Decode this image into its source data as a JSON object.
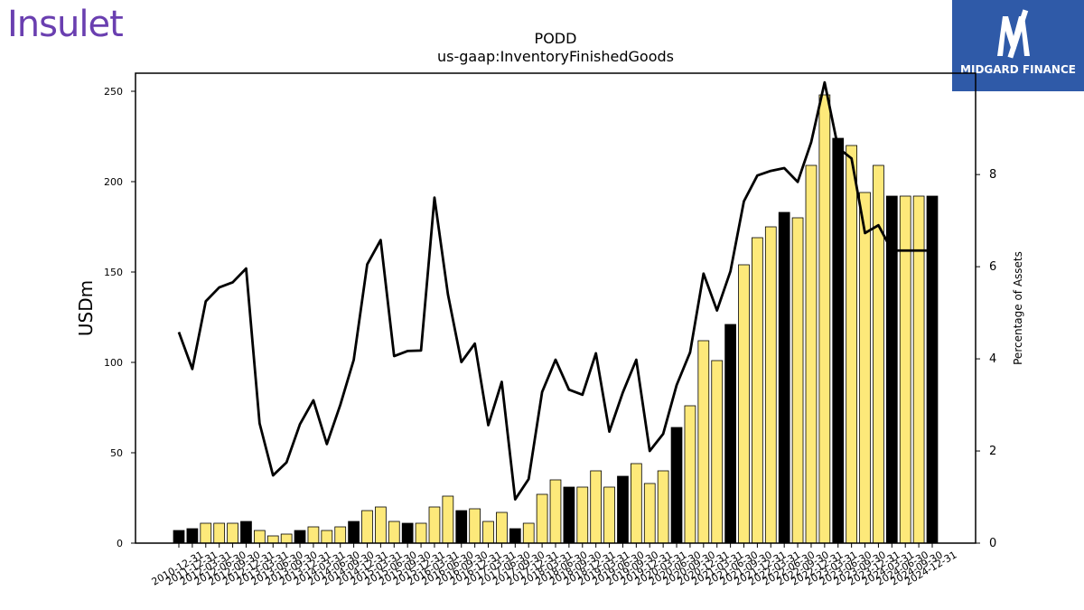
{
  "branding": {
    "left_logo_text": "Insulet",
    "right_logo_text": "MIDGARD FINANCE",
    "right_logo_icon": "midgard-m-icon",
    "right_logo_bg": "#2f5aa8",
    "left_logo_color": "#6a3fb0"
  },
  "chart_data": {
    "type": "bar",
    "title": "PODD",
    "subtitle": "us-gaap:InventoryFinishedGoods",
    "ylabel": "USDm",
    "y2label": "Percentage of Assets",
    "ylim": [
      0,
      260
    ],
    "y2lim": [
      0,
      10.2
    ],
    "yticks": [
      0,
      50,
      100,
      150,
      200,
      250
    ],
    "y2ticks": [
      0,
      2,
      4,
      6,
      8
    ],
    "grid": false,
    "colors": {
      "annual_bar": "#000000",
      "quarter_bar": "#fde97a",
      "line": "#000000"
    },
    "categories": [
      "2010-12-31",
      "2011-03-31",
      "2011-06-30",
      "2011-09-30",
      "2011-12-31",
      "2012-03-31",
      "2012-06-30",
      "2012-09-30",
      "2012-12-31",
      "2013-03-31",
      "2013-06-30",
      "2013-09-30",
      "2013-12-31",
      "2014-03-31",
      "2014-06-30",
      "2014-09-30",
      "2014-12-31",
      "2015-03-31",
      "2015-06-30",
      "2015-09-30",
      "2015-12-31",
      "2016-03-31",
      "2016-06-30",
      "2016-09-30",
      "2016-12-31",
      "2017-03-31",
      "2017-06-30",
      "2017-09-30",
      "2017-12-31",
      "2018-03-31",
      "2018-06-30",
      "2018-09-30",
      "2018-12-31",
      "2019-03-31",
      "2019-06-30",
      "2019-09-30",
      "2019-12-31",
      "2020-03-31",
      "2020-06-30",
      "2020-09-30",
      "2020-12-31",
      "2021-03-31",
      "2021-06-30",
      "2021-09-30",
      "2021-12-31",
      "2022-03-31",
      "2022-06-30",
      "2022-09-30",
      "2022-12-31",
      "2023-03-31",
      "2023-06-30",
      "2023-09-30",
      "2023-12-31",
      "2024-03-31",
      "2024-06-30",
      "2024-09-30",
      "2024-12-31"
    ],
    "xtick_labels": [
      "2010-12-31",
      "2011-12-31",
      "2012-03-31",
      "2012-06-30",
      "2012-09-30",
      "2012-12-31",
      "2013-03-31",
      "2013-06-30",
      "2013-09-30",
      "2013-12-31",
      "2014-03-31",
      "2014-06-30",
      "2014-09-30",
      "2014-12-31",
      "2015-03-31",
      "2015-06-30",
      "2015-09-30",
      "2015-12-31",
      "2016-03-31",
      "2016-06-30",
      "2016-09-30",
      "2016-12-31",
      "2017-03-31",
      "2017-06-30",
      "2017-09-30",
      "2017-12-31",
      "2018-03-31",
      "2018-06-30",
      "2018-09-30",
      "2018-12-31",
      "2019-03-31",
      "2019-06-30",
      "2019-09-30",
      "2019-12-31",
      "2020-03-31",
      "2020-06-30",
      "2020-09-30",
      "2020-12-31",
      "2021-03-31",
      "2021-06-30",
      "2021-09-30",
      "2021-12-31",
      "2022-03-31",
      "2022-06-30",
      "2022-09-30",
      "2022-12-31",
      "2023-03-31",
      "2023-06-30",
      "2023-09-30",
      "2023-12-31",
      "2024-03-31",
      "2024-06-30",
      "2024-09-30",
      "2024-12-31"
    ],
    "series": [
      {
        "kind": "bar",
        "axis": "left",
        "values": [
          7,
          8,
          11,
          11,
          11,
          12,
          7,
          4,
          5,
          7,
          9,
          7,
          9,
          12,
          18,
          20,
          12,
          11,
          11,
          20,
          26,
          18,
          19,
          12,
          17,
          8,
          11,
          27,
          35,
          31,
          31,
          40,
          31,
          37,
          44,
          33,
          40,
          64,
          76,
          112,
          101,
          121,
          154,
          169,
          175,
          183,
          180,
          209,
          248,
          224,
          220,
          194,
          209,
          192,
          192,
          192,
          192
        ],
        "annual": [
          true,
          true,
          false,
          false,
          false,
          true,
          false,
          false,
          false,
          true,
          false,
          false,
          false,
          true,
          false,
          false,
          false,
          true,
          false,
          false,
          false,
          true,
          false,
          false,
          false,
          true,
          false,
          false,
          false,
          true,
          false,
          false,
          false,
          true,
          false,
          false,
          false,
          true,
          false,
          false,
          false,
          true,
          false,
          false,
          false,
          true,
          false,
          false,
          false,
          true,
          false,
          false,
          false,
          true,
          false,
          false,
          true
        ]
      },
      {
        "kind": "line",
        "axis": "right",
        "values": [
          4.58,
          3.78,
          5.25,
          5.55,
          5.66,
          5.96,
          2.6,
          1.47,
          1.75,
          2.58,
          3.1,
          2.15,
          3.0,
          3.98,
          6.05,
          6.58,
          4.06,
          4.17,
          4.18,
          7.5,
          5.4,
          3.93,
          4.33,
          2.56,
          3.5,
          0.95,
          1.39,
          3.28,
          3.98,
          3.33,
          3.22,
          4.12,
          2.42,
          3.27,
          3.98,
          2.0,
          2.37,
          3.43,
          4.14,
          5.85,
          5.05,
          5.9,
          7.42,
          7.98,
          8.08,
          8.14,
          7.84,
          8.7,
          10.0,
          8.58,
          8.35,
          6.73,
          6.9,
          6.35,
          6.35,
          6.35,
          6.35
        ]
      }
    ]
  }
}
